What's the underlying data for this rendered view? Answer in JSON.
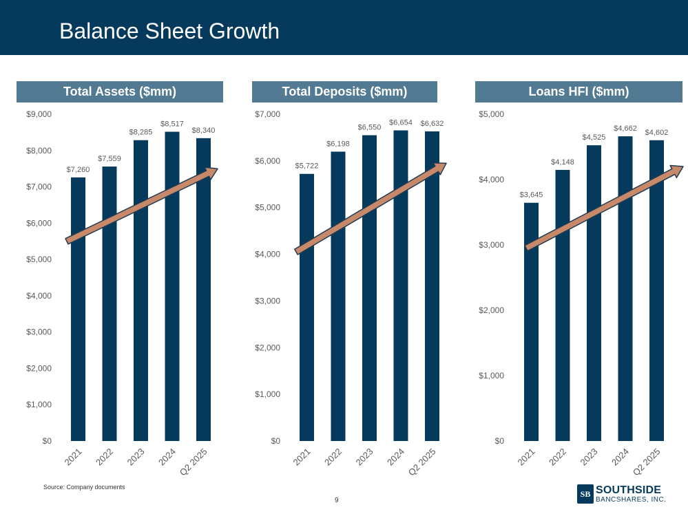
{
  "page": {
    "title": "Balance Sheet Growth",
    "source_note": "Source: Company documents",
    "page_number": "9"
  },
  "logo": {
    "mark": "SB",
    "name": "SOUTHSIDE",
    "subtitle": "BANCSHARES, INC."
  },
  "colors": {
    "bar": "#063a5c",
    "header_band": "#527a93",
    "arrow_fill": "#c8896a",
    "arrow_stroke": "#1f3a52",
    "axis_text": "#595959"
  },
  "chart_data": [
    {
      "type": "bar",
      "title": "Total Assets ($mm)",
      "categories": [
        "2021",
        "2022",
        "2023",
        "2024",
        "Q2 2025"
      ],
      "values": [
        7260,
        7559,
        8285,
        8517,
        8340
      ],
      "data_labels": [
        "$7,260",
        "$7,559",
        "$8,285",
        "$8,517",
        "$8,340"
      ],
      "ylim": [
        0,
        9000
      ],
      "yticks": [
        0,
        1000,
        2000,
        3000,
        4000,
        5000,
        6000,
        7000,
        8000,
        9000
      ],
      "ytick_labels": [
        "$0",
        "$1,000",
        "$2,000",
        "$3,000",
        "$4,000",
        "$5,000",
        "$6,000",
        "$7,000",
        "$8,000",
        "$9,000"
      ],
      "trend_arrow": {
        "from": 5500,
        "to": 7500
      },
      "grid": false
    },
    {
      "type": "bar",
      "title": "Total Deposits ($mm)",
      "categories": [
        "2021",
        "2022",
        "2023",
        "2024",
        "Q2 2025"
      ],
      "values": [
        5722,
        6198,
        6550,
        6654,
        6632
      ],
      "data_labels": [
        "$5,722",
        "$6,198",
        "$6,550",
        "$6,654",
        "$6,632"
      ],
      "ylim": [
        0,
        7000
      ],
      "yticks": [
        0,
        1000,
        2000,
        3000,
        4000,
        5000,
        6000,
        7000
      ],
      "ytick_labels": [
        "$0",
        "$1,000",
        "$2,000",
        "$3,000",
        "$4,000",
        "$5,000",
        "$6,000",
        "$7,000"
      ],
      "trend_arrow": {
        "from": 4050,
        "to": 5950
      },
      "grid": false
    },
    {
      "type": "bar",
      "title": "Loans HFI ($mm)",
      "categories": [
        "2021",
        "2022",
        "2023",
        "2024",
        "Q2 2025"
      ],
      "values": [
        3645,
        4148,
        4525,
        4662,
        4602
      ],
      "data_labels": [
        "$3,645",
        "$4,148",
        "$4,525",
        "$4,662",
        "$4,602"
      ],
      "ylim": [
        0,
        5000
      ],
      "yticks": [
        0,
        1000,
        2000,
        3000,
        4000,
        5000
      ],
      "ytick_labels": [
        "$0",
        "$1,000",
        "$2,000",
        "$3,000",
        "$4,000",
        "$5,000"
      ],
      "trend_arrow": {
        "from": 2950,
        "to": 4200
      },
      "grid": false
    }
  ]
}
